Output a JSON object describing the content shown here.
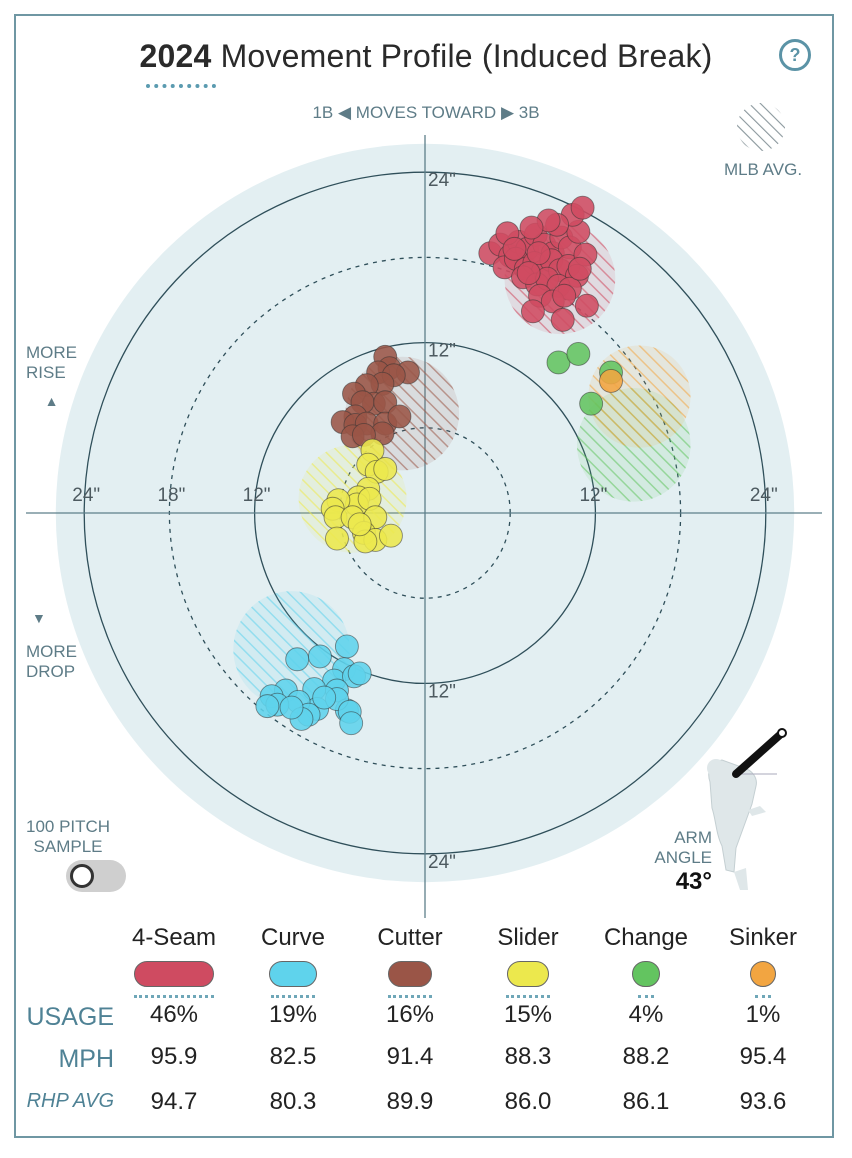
{
  "title": {
    "year": "2024",
    "text": "Movement Profile (Induced Break)"
  },
  "help_label": "?",
  "direction": {
    "left": "1B",
    "middle": "MOVES TOWARD",
    "right": "3B"
  },
  "legend_mlb_avg": "MLB AVG.",
  "more_rise": [
    "MORE",
    "RISE"
  ],
  "more_drop": [
    "MORE",
    "DROP"
  ],
  "sample_label": [
    "100 PITCH",
    "SAMPLE"
  ],
  "arm_angle_label": [
    "ARM",
    "ANGLE"
  ],
  "arm_angle_value": "43°",
  "colors": {
    "outer_ring": "#e3eff2",
    "ring_lines": "#2f4f5a",
    "4-Seam": "#cf4b61",
    "Curve": "#5fd3ec",
    "Cutter": "#9a5547",
    "Slider": "#ece84d",
    "Change": "#63c460",
    "Sinker": "#f2a541"
  },
  "chart_data": {
    "type": "scatter",
    "title": "2024 Movement Profile (Induced Break)",
    "xlabel": "1B ◀ MOVES TOWARD ▶ 3B",
    "ylabel": "MORE RISE / MORE DROP",
    "units": "inches",
    "xlim": [
      -24,
      24
    ],
    "ylim": [
      -24,
      24
    ],
    "rings": [
      6,
      12,
      18,
      24
    ],
    "tick_labels": [
      {
        "text": "24\"",
        "pos": "top"
      },
      {
        "text": "12\"",
        "pos": "top"
      },
      {
        "text": "12\"",
        "pos": "bottom"
      },
      {
        "text": "24\"",
        "pos": "bottom"
      },
      {
        "text": "24\"",
        "pos": "left"
      },
      {
        "text": "18\"",
        "pos": "left"
      },
      {
        "text": "12\"",
        "pos": "left"
      },
      {
        "text": "12\"",
        "pos": "right"
      },
      {
        "text": "24\"",
        "pos": "right"
      }
    ],
    "mlb_avg": [
      {
        "name": "4-Seam",
        "x": 9.5,
        "y": 16.5,
        "r": 3.9
      },
      {
        "name": "Curve",
        "x": -9.4,
        "y": -9.6,
        "r": 4.1
      },
      {
        "name": "Cutter",
        "x": -1.6,
        "y": 7.0,
        "r": 4.0
      },
      {
        "name": "Slider",
        "x": -5.1,
        "y": 1.0,
        "r": 3.8
      },
      {
        "name": "Change",
        "x": 14.7,
        "y": 4.8,
        "r": 4.0
      },
      {
        "name": "Sinker",
        "x": 15.1,
        "y": 8.2,
        "r": 3.6
      }
    ],
    "series": [
      {
        "name": "4-Seam",
        "points": [
          [
            4.6,
            18.3
          ],
          [
            5.3,
            18.9
          ],
          [
            6.0,
            18.1
          ],
          [
            6.6,
            19.1
          ],
          [
            7.2,
            18.6
          ],
          [
            7.8,
            19.6
          ],
          [
            8.4,
            18.9
          ],
          [
            9.0,
            18.3
          ],
          [
            9.6,
            19.4
          ],
          [
            10.2,
            18.7
          ],
          [
            10.8,
            19.8
          ],
          [
            5.6,
            17.3
          ],
          [
            6.4,
            17.9
          ],
          [
            7.1,
            17.2
          ],
          [
            7.7,
            17.6
          ],
          [
            8.3,
            17.0
          ],
          [
            8.9,
            17.8
          ],
          [
            9.5,
            17.1
          ],
          [
            10.1,
            17.4
          ],
          [
            10.7,
            16.7
          ],
          [
            6.9,
            16.6
          ],
          [
            7.9,
            16.1
          ],
          [
            8.6,
            16.5
          ],
          [
            9.4,
            16.0
          ],
          [
            10.2,
            15.8
          ],
          [
            8.1,
            15.3
          ],
          [
            9.0,
            14.9
          ],
          [
            11.3,
            18.2
          ],
          [
            10.4,
            21.0
          ],
          [
            11.1,
            21.5
          ],
          [
            9.3,
            20.3
          ],
          [
            8.7,
            20.6
          ],
          [
            7.5,
            20.1
          ],
          [
            5.8,
            19.7
          ],
          [
            9.8,
            15.3
          ],
          [
            7.6,
            14.2
          ],
          [
            9.7,
            13.6
          ],
          [
            11.4,
            14.6
          ],
          [
            6.3,
            18.6
          ],
          [
            8.0,
            18.3
          ],
          [
            10.9,
            17.2
          ],
          [
            7.3,
            16.9
          ]
        ]
      },
      {
        "name": "Curve",
        "points": [
          [
            -5.5,
            -9.4
          ],
          [
            -7.4,
            -10.1
          ],
          [
            -9.0,
            -10.3
          ],
          [
            -5.7,
            -11.0
          ],
          [
            -6.4,
            -11.8
          ],
          [
            -7.8,
            -12.4
          ],
          [
            -9.8,
            -12.5
          ],
          [
            -10.8,
            -12.9
          ],
          [
            -5.0,
            -11.5
          ],
          [
            -4.6,
            -11.3
          ],
          [
            -6.2,
            -12.5
          ],
          [
            -7.6,
            -13.8
          ],
          [
            -8.9,
            -13.3
          ],
          [
            -10.4,
            -13.5
          ],
          [
            -11.1,
            -13.6
          ],
          [
            -8.2,
            -14.2
          ],
          [
            -5.5,
            -13.9
          ],
          [
            -6.2,
            -13.1
          ],
          [
            -7.1,
            -13.0
          ],
          [
            -5.3,
            -14.0
          ],
          [
            -8.7,
            -14.5
          ],
          [
            -5.2,
            -14.8
          ],
          [
            -9.4,
            -13.7
          ]
        ]
      },
      {
        "name": "Cutter",
        "points": [
          [
            -2.8,
            11.0
          ],
          [
            -2.5,
            10.2
          ],
          [
            -3.3,
            9.9
          ],
          [
            -1.2,
            9.9
          ],
          [
            -2.2,
            9.7
          ],
          [
            -3.0,
            9.1
          ],
          [
            -4.1,
            9.0
          ],
          [
            -5.0,
            8.4
          ],
          [
            -3.6,
            7.7
          ],
          [
            -4.4,
            7.8
          ],
          [
            -2.8,
            7.8
          ],
          [
            -4.9,
            6.8
          ],
          [
            -5.8,
            6.4
          ],
          [
            -4.9,
            6.2
          ],
          [
            -4.1,
            6.3
          ],
          [
            -2.8,
            6.3
          ],
          [
            -1.8,
            6.8
          ],
          [
            -3.0,
            5.6
          ],
          [
            -5.1,
            5.4
          ],
          [
            -4.3,
            5.5
          ]
        ]
      },
      {
        "name": "Slider",
        "points": [
          [
            -3.7,
            4.4
          ],
          [
            -4.0,
            3.4
          ],
          [
            -3.4,
            2.9
          ],
          [
            -2.8,
            3.1
          ],
          [
            -4.0,
            1.7
          ],
          [
            -4.7,
            1.1
          ],
          [
            -4.8,
            0.6
          ],
          [
            -3.9,
            1.0
          ],
          [
            -6.1,
            0.9
          ],
          [
            -6.5,
            0.3
          ],
          [
            -6.3,
            -0.3
          ],
          [
            -5.1,
            -0.3
          ],
          [
            -3.5,
            -0.3
          ],
          [
            -4.3,
            -1.4
          ],
          [
            -6.2,
            -1.8
          ],
          [
            -3.5,
            -1.9
          ],
          [
            -4.2,
            -2.0
          ],
          [
            -2.4,
            -1.6
          ],
          [
            -4.6,
            -0.8
          ]
        ]
      },
      {
        "name": "Change",
        "points": [
          [
            9.4,
            10.6
          ],
          [
            10.8,
            11.2
          ],
          [
            13.1,
            9.9
          ],
          [
            11.7,
            7.7
          ]
        ]
      },
      {
        "name": "Sinker",
        "points": [
          [
            13.1,
            9.3
          ]
        ]
      }
    ]
  },
  "table": {
    "pitches": [
      "4-Seam",
      "Curve",
      "Cutter",
      "Slider",
      "Change",
      "Sinker"
    ],
    "rows": [
      {
        "label": "USAGE",
        "values": [
          "46%",
          "19%",
          "16%",
          "15%",
          "4%",
          "1%"
        ]
      },
      {
        "label": "MPH",
        "values": [
          "95.9",
          "82.5",
          "91.4",
          "88.3",
          "88.2",
          "95.4"
        ]
      },
      {
        "label": "RHP AVG",
        "values": [
          "94.7",
          "80.3",
          "89.9",
          "86.0",
          "86.1",
          "93.6"
        ]
      }
    ]
  }
}
